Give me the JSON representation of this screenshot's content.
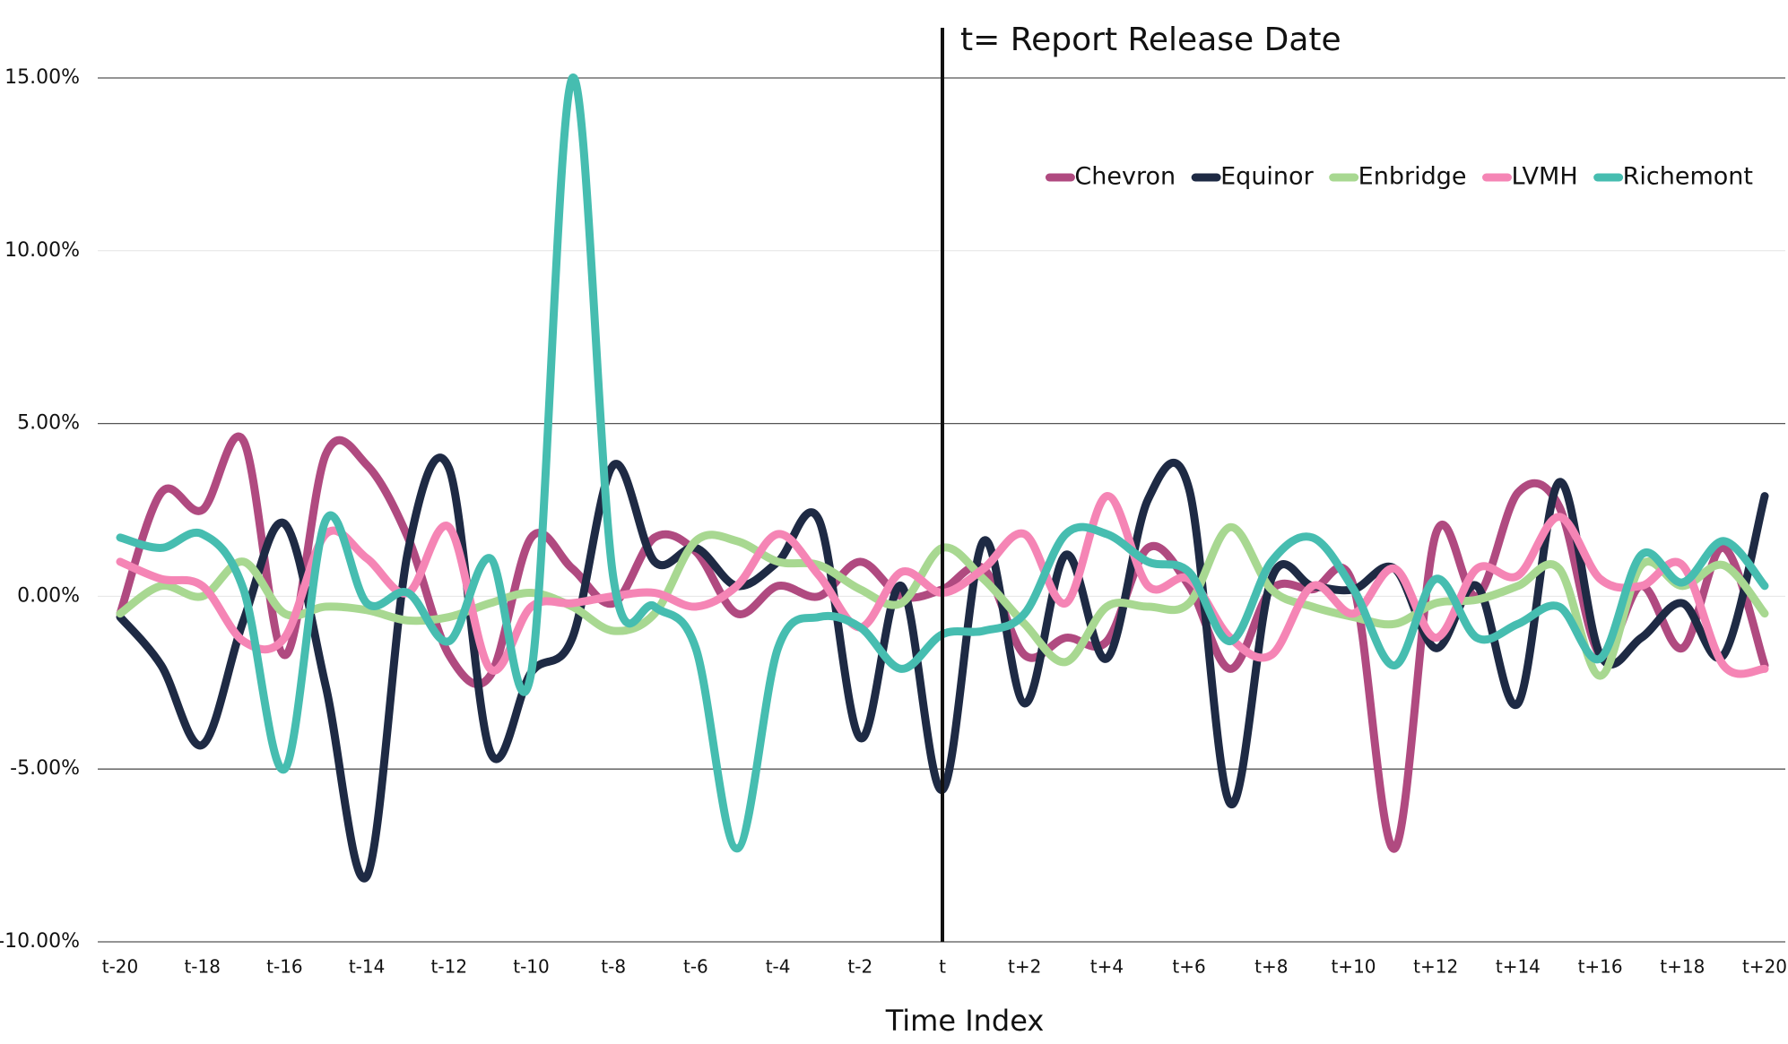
{
  "chart_data": {
    "type": "line",
    "annotation": "t= Report Release Date",
    "x_label": "Time Index",
    "categories": [
      "t-20",
      null,
      "t-18",
      null,
      "t-16",
      null,
      "t-14",
      null,
      "t-12",
      null,
      "t-10",
      null,
      "t-8",
      null,
      "t-6",
      null,
      "t-4",
      null,
      "t-2",
      null,
      "t",
      null,
      "t+2",
      null,
      "t+4",
      null,
      "t+6",
      null,
      "t+8",
      null,
      "t+10",
      null,
      "t+12",
      null,
      "t+14",
      null,
      "t+16",
      null,
      "t+18",
      null,
      "t+20"
    ],
    "series": [
      {
        "name": "Chevron",
        "color": "#b04a80",
        "values": [
          -0.5,
          3.0,
          2.5,
          4.5,
          -1.7,
          4.1,
          3.8,
          1.7,
          -1.7,
          -2.3,
          1.7,
          0.8,
          -0.2,
          1.7,
          1.3,
          -0.5,
          0.3,
          0.0,
          1.0,
          0.0,
          0.2,
          0.8,
          -1.7,
          -1.2,
          -1.3,
          1.4,
          0.3,
          -2.1,
          0.2,
          0.2,
          0.3,
          -7.3,
          1.8,
          0.0,
          3.0,
          2.6,
          -1.7,
          0.3,
          -1.5,
          1.4,
          -2.0
        ]
      },
      {
        "name": "Equinor",
        "color": "#1e2a44",
        "values": [
          -0.6,
          -2.0,
          -4.3,
          -0.7,
          2.1,
          -2.6,
          -8.1,
          1.3,
          3.7,
          -4.5,
          -2.2,
          -1.2,
          3.8,
          1.0,
          1.4,
          0.3,
          1.0,
          2.2,
          -4.1,
          0.3,
          -5.6,
          1.6,
          -3.1,
          1.2,
          -1.8,
          2.8,
          3.1,
          -6.0,
          0.5,
          0.3,
          0.2,
          0.8,
          -1.5,
          0.3,
          -3.1,
          3.3,
          -1.7,
          -1.2,
          -0.2,
          -1.7,
          2.9
        ]
      },
      {
        "name": "Enbridge",
        "color": "#a8d891",
        "values": [
          -0.5,
          0.3,
          0.0,
          1.0,
          -0.5,
          -0.3,
          -0.4,
          -0.7,
          -0.6,
          -0.2,
          0.1,
          -0.3,
          -1.0,
          -0.5,
          1.6,
          1.6,
          1.0,
          0.9,
          0.2,
          -0.2,
          1.4,
          0.5,
          -0.8,
          -1.9,
          -0.3,
          -0.3,
          -0.2,
          2.0,
          0.2,
          -0.3,
          -0.6,
          -0.8,
          -0.2,
          -0.1,
          0.3,
          0.8,
          -2.3,
          0.9,
          0.3,
          0.9,
          -0.5
        ]
      },
      {
        "name": "LVMH",
        "color": "#f585b5",
        "values": [
          1.0,
          0.5,
          0.3,
          -1.3,
          -1.2,
          1.8,
          1.1,
          0.1,
          2.0,
          -2.1,
          -0.3,
          -0.2,
          0.0,
          0.1,
          -0.3,
          0.3,
          1.8,
          0.6,
          -0.9,
          0.7,
          0.1,
          0.8,
          1.8,
          -0.2,
          2.9,
          0.3,
          0.5,
          -1.2,
          -1.7,
          0.3,
          -0.5,
          0.8,
          -1.2,
          0.8,
          0.6,
          2.3,
          0.5,
          0.3,
          0.9,
          -2.0,
          -2.1
        ]
      },
      {
        "name": "Richemont",
        "color": "#46bdb0",
        "values": [
          1.7,
          1.4,
          1.8,
          0.2,
          -5.0,
          2.2,
          -0.2,
          0.1,
          -1.3,
          1.1,
          -2.2,
          15.0,
          0.5,
          -0.3,
          -1.5,
          -7.3,
          -1.5,
          -0.6,
          -0.9,
          -2.1,
          -1.1,
          -1.0,
          -0.5,
          1.8,
          1.8,
          1.0,
          0.7,
          -1.3,
          1.0,
          1.7,
          0.2,
          -2.0,
          0.5,
          -1.2,
          -0.8,
          -0.3,
          -1.8,
          1.2,
          0.4,
          1.6,
          0.3
        ]
      }
    ],
    "ylim": [
      -10,
      15
    ],
    "yticks": [
      {
        "value": -10,
        "label": "-10.00%"
      },
      {
        "value": -5,
        "label": "-5.00%"
      },
      {
        "value": 0,
        "label": "0.00%"
      },
      {
        "value": 5,
        "label": "5.00%"
      },
      {
        "value": 10,
        "label": "10.00%"
      },
      {
        "value": 15,
        "label": "15.00%"
      }
    ],
    "grid": true,
    "legend": "top-right"
  }
}
